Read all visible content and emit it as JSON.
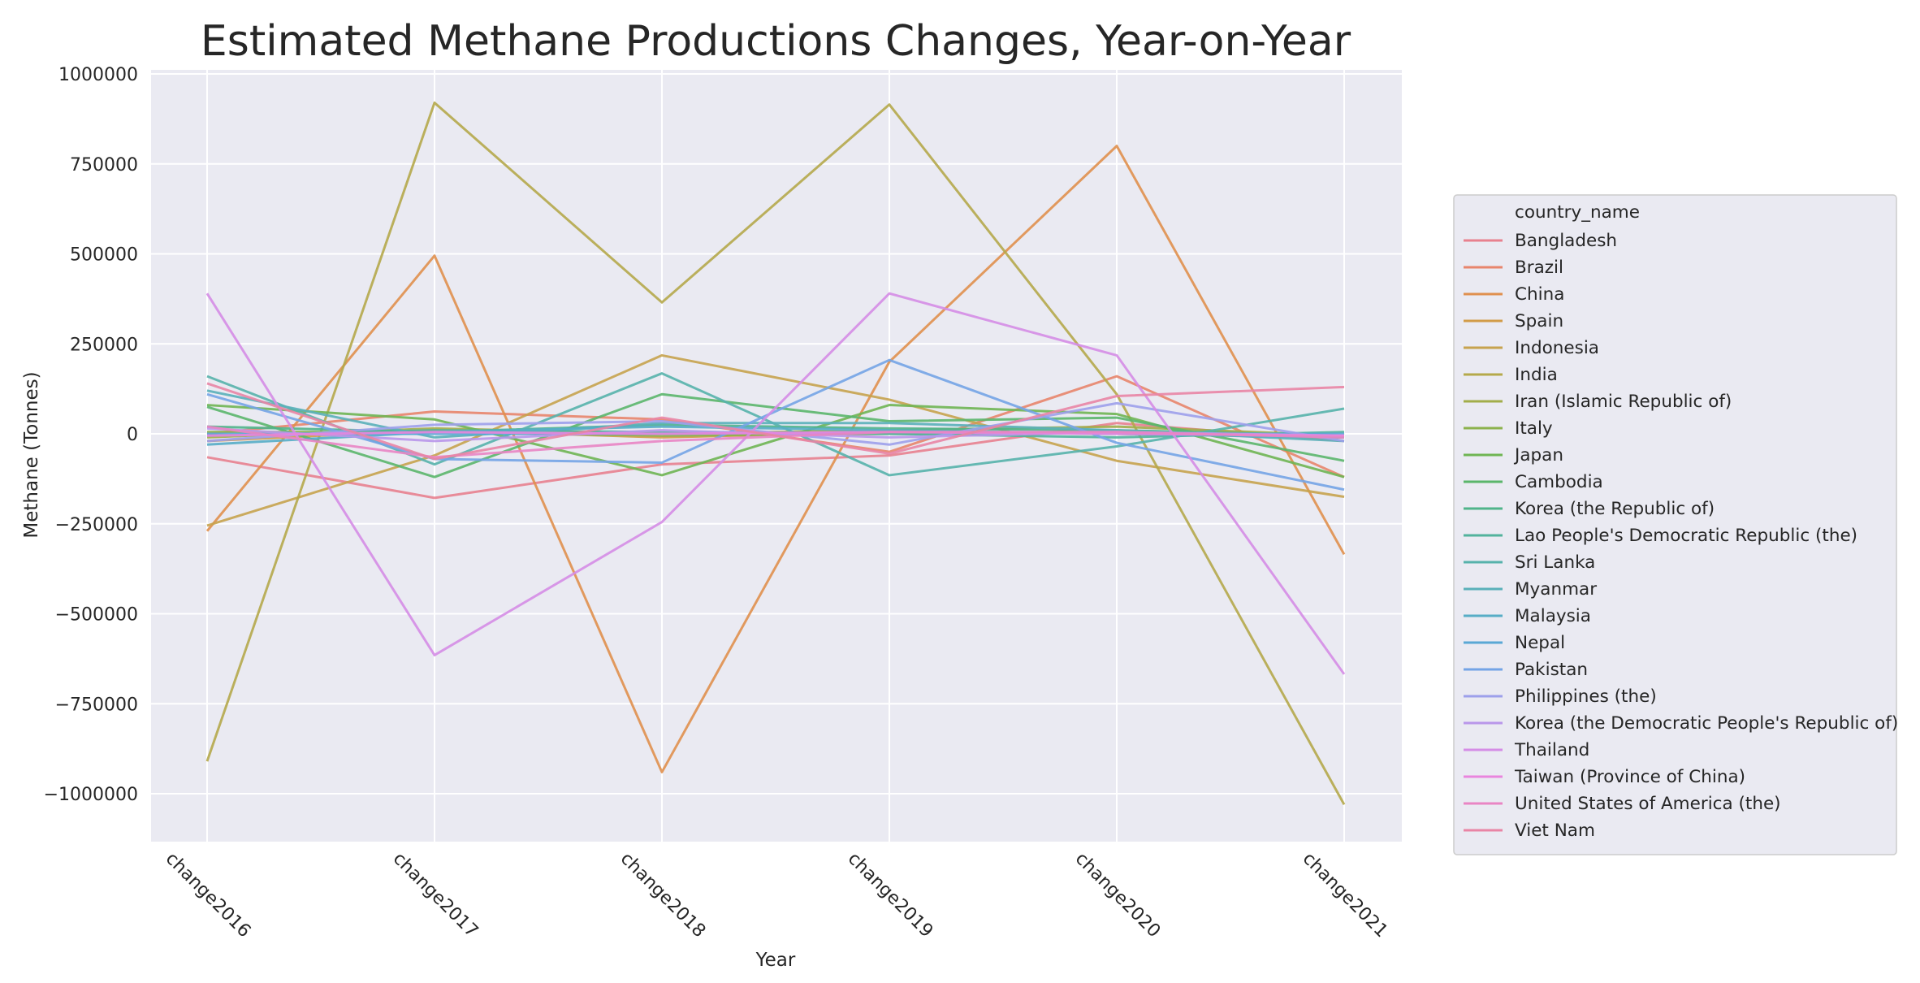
{
  "chart_data": {
    "type": "line",
    "title": "Estimated Methane Productions Changes, Year-on-Year",
    "xlabel": "Year",
    "ylabel": "Methane (Tonnes)",
    "ylim": [
      -1130000,
      1010000
    ],
    "yticks": [
      1000000,
      750000,
      500000,
      250000,
      0,
      -250000,
      -500000,
      -750000,
      -1000000
    ],
    "ytick_labels": [
      "1000000",
      "750000",
      "500000",
      "250000",
      "0",
      "−250000",
      "−500000",
      "−750000",
      "−1000000"
    ],
    "grid": true,
    "legend_position": "center-right",
    "legend_title": "country_name",
    "categories": [
      "change2016",
      "change2017",
      "change2018",
      "change2019",
      "change2020",
      "change2021"
    ],
    "series": [
      {
        "name": "Bangladesh",
        "color": "#e8818f",
        "values": [
          -65000,
          -178000,
          -85000,
          -60000,
          30000,
          -20000
        ]
      },
      {
        "name": "Brazil",
        "color": "#e8856c",
        "values": [
          0,
          62000,
          40000,
          -50000,
          160000,
          -120000
        ]
      },
      {
        "name": "China",
        "color": "#e0904e",
        "values": [
          -270000,
          495000,
          -940000,
          200000,
          800000,
          -335000
        ]
      },
      {
        "name": "Spain",
        "color": "#d29c48",
        "values": [
          -20000,
          10000,
          -10000,
          5000,
          0,
          -10000
        ]
      },
      {
        "name": "Indonesia",
        "color": "#c7a34e",
        "values": [
          -255000,
          -60000,
          218000,
          95000,
          -75000,
          -175000
        ]
      },
      {
        "name": "India",
        "color": "#b5a94b",
        "values": [
          -910000,
          920000,
          365000,
          915000,
          110000,
          -1030000
        ]
      },
      {
        "name": "Iran (Islamic Republic of)",
        "color": "#a2ad4a",
        "values": [
          -10000,
          15000,
          0,
          10000,
          20000,
          -5000
        ]
      },
      {
        "name": "Italy",
        "color": "#8cb24d",
        "values": [
          5000,
          5000,
          -5000,
          0,
          5000,
          -10000
        ]
      },
      {
        "name": "Japan",
        "color": "#6fb553",
        "values": [
          80000,
          40000,
          -115000,
          80000,
          55000,
          -120000
        ]
      },
      {
        "name": "Cambodia",
        "color": "#5bb66b",
        "values": [
          75000,
          -120000,
          110000,
          35000,
          45000,
          -75000
        ]
      },
      {
        "name": "Korea (the Republic of)",
        "color": "#50b48a",
        "values": [
          20000,
          5000,
          25000,
          15000,
          10000,
          -5000
        ]
      },
      {
        "name": "Lao People's Democratic Republic (the)",
        "color": "#52b39c",
        "values": [
          -5000,
          10000,
          5000,
          0,
          -10000,
          5000
        ]
      },
      {
        "name": "Sri Lanka",
        "color": "#56b2ab",
        "values": [
          160000,
          -85000,
          168000,
          -115000,
          -35000,
          70000
        ]
      },
      {
        "name": "Myanmar",
        "color": "#5ab0b9",
        "values": [
          120000,
          -10000,
          30000,
          30000,
          10000,
          -20000
        ]
      },
      {
        "name": "Malaysia",
        "color": "#57adc6",
        "values": [
          -30000,
          5000,
          20000,
          10000,
          0,
          -10000
        ]
      },
      {
        "name": "Nepal",
        "color": "#5aa8d5",
        "values": [
          0,
          0,
          0,
          5000,
          0,
          0
        ]
      },
      {
        "name": "Pakistan",
        "color": "#74a4e6",
        "values": [
          110000,
          -70000,
          -80000,
          205000,
          -25000,
          -155000
        ]
      },
      {
        "name": "Philippines (the)",
        "color": "#9da0eb",
        "values": [
          -20000,
          25000,
          35000,
          -30000,
          85000,
          -20000
        ]
      },
      {
        "name": "Korea (the Democratic People's Republic of)",
        "color": "#b997ea",
        "values": [
          15000,
          -20000,
          10000,
          -10000,
          5000,
          -5000
        ]
      },
      {
        "name": "Thailand",
        "color": "#d58de6",
        "values": [
          390000,
          -615000,
          -245000,
          390000,
          218000,
          -668000
        ]
      },
      {
        "name": "Taiwan (Province of China)",
        "color": "#e985de",
        "values": [
          -5000,
          5000,
          0,
          5000,
          0,
          -5000
        ]
      },
      {
        "name": "United States of America (the)",
        "color": "#e985c4",
        "values": [
          20000,
          -65000,
          -20000,
          5000,
          5000,
          -10000
        ]
      },
      {
        "name": "Viet Nam",
        "color": "#e985a5",
        "values": [
          140000,
          -70000,
          45000,
          -55000,
          105000,
          130000
        ]
      }
    ]
  }
}
